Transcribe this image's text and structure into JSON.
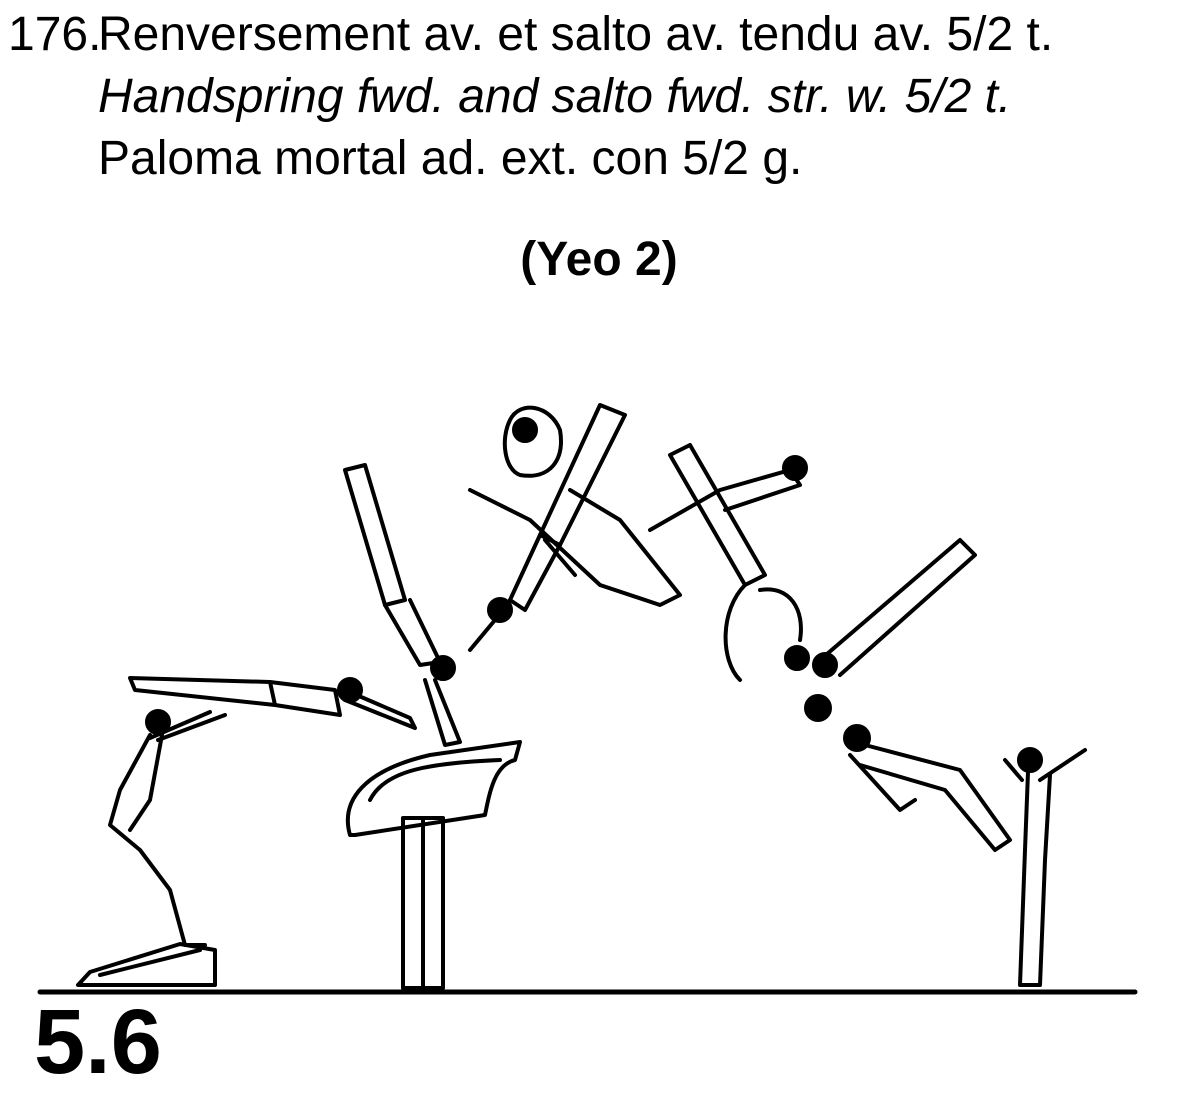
{
  "element": {
    "number": "176.",
    "french": "Renversement av. et salto av. tendu av. 5/2 t.",
    "english": "Handspring fwd. and salto fwd. str. w. 5/2 t.",
    "spanish": "Paloma mortal ad. ext. con 5/2 g.",
    "name": "(Yeo 2)",
    "value": "5.6"
  }
}
